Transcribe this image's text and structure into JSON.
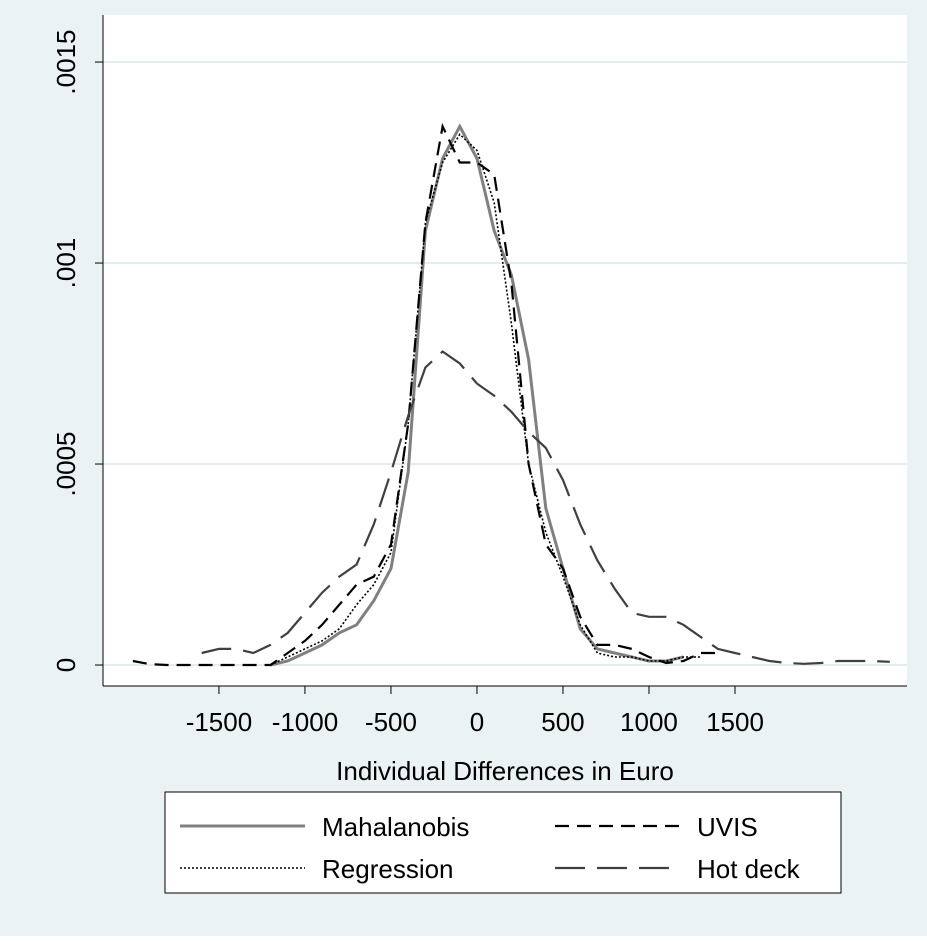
{
  "chart_data": {
    "type": "line",
    "xlabel": "Individual Differences in Euro",
    "x": [
      -2000,
      -1900,
      -1800,
      -1700,
      -1600,
      -1500,
      -1400,
      -1300,
      -1200,
      -1100,
      -1000,
      -900,
      -800,
      -700,
      -600,
      -500,
      -400,
      -300,
      -200,
      -100,
      0,
      100,
      200,
      300,
      400,
      500,
      600,
      700,
      800,
      900,
      1000,
      1100,
      1200,
      1300,
      1400,
      1500,
      1600,
      1700,
      1800,
      1900,
      2000,
      2100,
      2200,
      2300,
      2400
    ],
    "series": [
      {
        "name": "Mahalanobis",
        "color": "#808080",
        "dash": "solid",
        "values": [
          null,
          null,
          null,
          null,
          null,
          null,
          null,
          null,
          0,
          1e-05,
          3e-05,
          5e-05,
          8e-05,
          0.0001,
          0.00016,
          0.00024,
          0.00048,
          0.00108,
          0.00126,
          0.00134,
          0.00126,
          0.00108,
          0.00097,
          0.00076,
          0.00039,
          0.00024,
          9e-05,
          4e-05,
          3e-05,
          2e-05,
          1e-05,
          1e-05,
          2e-05,
          null,
          null,
          null,
          null,
          null,
          null,
          null,
          null,
          null,
          null,
          null,
          null
        ]
      },
      {
        "name": "UVIS",
        "color": "#000000",
        "dash": "dashed",
        "values": [
          1e-05,
          2e-06,
          0,
          0,
          0,
          0,
          0,
          0,
          0,
          3e-05,
          6e-05,
          0.0001,
          0.00015,
          0.0002,
          0.00022,
          0.0003,
          0.0006,
          0.0011,
          0.00134,
          0.00125,
          0.00125,
          0.00122,
          0.00095,
          0.0005,
          0.0003,
          0.00024,
          0.00012,
          5e-05,
          5e-05,
          4e-05,
          2e-05,
          5e-06,
          1e-05,
          3e-05,
          3e-05,
          null,
          null,
          null,
          null,
          null,
          null,
          null,
          null,
          null,
          null
        ]
      },
      {
        "name": "Regression",
        "color": "#000000",
        "dash": "dotted",
        "values": [
          null,
          null,
          null,
          null,
          null,
          null,
          null,
          null,
          0,
          2e-05,
          4e-05,
          6e-05,
          9e-05,
          0.00015,
          0.0002,
          0.00028,
          0.0006,
          0.0011,
          0.00125,
          0.00132,
          0.00128,
          0.00115,
          0.00085,
          0.0005,
          0.00033,
          0.00022,
          0.0001,
          3e-05,
          2e-05,
          2e-05,
          1e-05,
          1e-05,
          2e-05,
          2e-05,
          null,
          null,
          null,
          null,
          null,
          null,
          null,
          null,
          null,
          null,
          null
        ]
      },
      {
        "name": "Hot deck",
        "color": "#404040",
        "dash": "longdash",
        "values": [
          null,
          null,
          null,
          null,
          3e-05,
          4e-05,
          4e-05,
          3e-05,
          5e-05,
          8e-05,
          0.00013,
          0.00018,
          0.00022,
          0.00025,
          0.00035,
          0.00048,
          0.00062,
          0.00074,
          0.00078,
          0.00075,
          0.0007,
          0.00067,
          0.00063,
          0.00058,
          0.00054,
          0.00046,
          0.00035,
          0.00026,
          0.00019,
          0.00013,
          0.00012,
          0.00012,
          0.0001,
          7e-05,
          4e-05,
          3e-05,
          2e-05,
          1e-05,
          5e-06,
          3e-06,
          5e-06,
          1e-05,
          1e-05,
          1e-05,
          8e-06
        ]
      }
    ],
    "xlim": [
      -2174,
      2500
    ],
    "ylim": [
      -5.22e-05,
      0.001617
    ],
    "xticks": [
      -1500,
      -1000,
      -500,
      0,
      500,
      1000,
      1500
    ],
    "yticks": [
      0,
      {
        "value": 0.0005,
        "label": ".0005"
      },
      {
        "value": 0.001,
        "label": ".001"
      },
      {
        "value": 0.0015,
        "label": ".0015"
      }
    ],
    "grid": true
  }
}
